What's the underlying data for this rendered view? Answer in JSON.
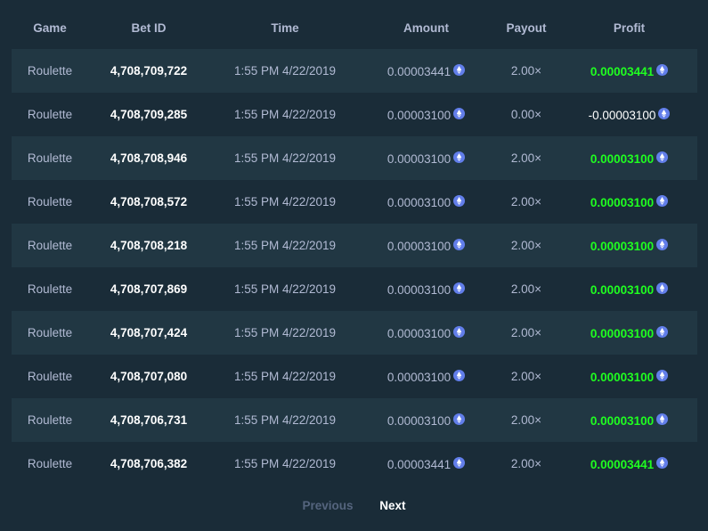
{
  "headers": {
    "game": "Game",
    "bet_id": "Bet ID",
    "time": "Time",
    "amount": "Amount",
    "payout": "Payout",
    "profit": "Profit"
  },
  "currency_icon": "ethereum-icon",
  "colors": {
    "background": "#1a2c38",
    "row_alt": "#213743",
    "profit_positive": "#1fff20",
    "currency_icon": "#627eea"
  },
  "rows": [
    {
      "game": "Roulette",
      "bet_id": "4,708,709,722",
      "time": "1:55 PM 4/22/2019",
      "amount": "0.00003441",
      "payout": "2.00×",
      "profit": "0.00003441",
      "win": true
    },
    {
      "game": "Roulette",
      "bet_id": "4,708,709,285",
      "time": "1:55 PM 4/22/2019",
      "amount": "0.00003100",
      "payout": "0.00×",
      "profit": "-0.00003100",
      "win": false
    },
    {
      "game": "Roulette",
      "bet_id": "4,708,708,946",
      "time": "1:55 PM 4/22/2019",
      "amount": "0.00003100",
      "payout": "2.00×",
      "profit": "0.00003100",
      "win": true
    },
    {
      "game": "Roulette",
      "bet_id": "4,708,708,572",
      "time": "1:55 PM 4/22/2019",
      "amount": "0.00003100",
      "payout": "2.00×",
      "profit": "0.00003100",
      "win": true
    },
    {
      "game": "Roulette",
      "bet_id": "4,708,708,218",
      "time": "1:55 PM 4/22/2019",
      "amount": "0.00003100",
      "payout": "2.00×",
      "profit": "0.00003100",
      "win": true
    },
    {
      "game": "Roulette",
      "bet_id": "4,708,707,869",
      "time": "1:55 PM 4/22/2019",
      "amount": "0.00003100",
      "payout": "2.00×",
      "profit": "0.00003100",
      "win": true
    },
    {
      "game": "Roulette",
      "bet_id": "4,708,707,424",
      "time": "1:55 PM 4/22/2019",
      "amount": "0.00003100",
      "payout": "2.00×",
      "profit": "0.00003100",
      "win": true
    },
    {
      "game": "Roulette",
      "bet_id": "4,708,707,080",
      "time": "1:55 PM 4/22/2019",
      "amount": "0.00003100",
      "payout": "2.00×",
      "profit": "0.00003100",
      "win": true
    },
    {
      "game": "Roulette",
      "bet_id": "4,708,706,731",
      "time": "1:55 PM 4/22/2019",
      "amount": "0.00003100",
      "payout": "2.00×",
      "profit": "0.00003100",
      "win": true
    },
    {
      "game": "Roulette",
      "bet_id": "4,708,706,382",
      "time": "1:55 PM 4/22/2019",
      "amount": "0.00003441",
      "payout": "2.00×",
      "profit": "0.00003441",
      "win": true
    }
  ],
  "pagination": {
    "previous_label": "Previous",
    "next_label": "Next"
  }
}
